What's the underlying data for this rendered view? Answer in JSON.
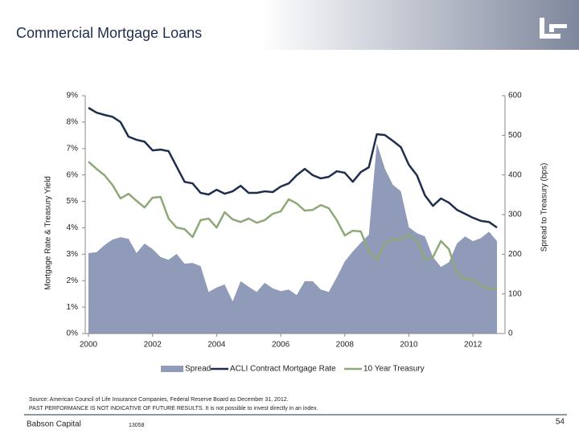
{
  "chart_data": {
    "type": "line",
    "title": "Commercial Mortgage Loans",
    "y_label": "Mortgage Rate & Treasury Yield",
    "y2_label": "Spread to Treasury (bps)",
    "x": [
      2000,
      2000.25,
      2000.5,
      2000.75,
      2001,
      2001.25,
      2001.5,
      2001.75,
      2002,
      2002.25,
      2002.5,
      2002.75,
      2003,
      2003.25,
      2003.5,
      2003.75,
      2004,
      2004.25,
      2004.5,
      2004.75,
      2005,
      2005.25,
      2005.5,
      2005.75,
      2006,
      2006.25,
      2006.5,
      2006.75,
      2007,
      2007.25,
      2007.5,
      2007.75,
      2008,
      2008.25,
      2008.5,
      2008.75,
      2009,
      2009.25,
      2009.5,
      2009.75,
      2010,
      2010.25,
      2010.5,
      2010.75,
      2011,
      2011.25,
      2011.5,
      2011.75,
      2012,
      2012.25,
      2012.5,
      2012.75
    ],
    "xlim": [
      2000,
      2013
    ],
    "xticks": [
      2000,
      2002,
      2004,
      2006,
      2008,
      2010,
      2012
    ],
    "ylim": [
      0,
      9
    ],
    "yticks": [
      {
        "value": 0,
        "label": "0%"
      },
      {
        "value": 1,
        "label": "1%"
      },
      {
        "value": 2,
        "label": "2%"
      },
      {
        "value": 3,
        "label": "3%"
      },
      {
        "value": 4,
        "label": "4%"
      },
      {
        "value": 5,
        "label": "5%"
      },
      {
        "value": 6,
        "label": "6%"
      },
      {
        "value": 7,
        "label": "7%"
      },
      {
        "value": 8,
        "label": "8%"
      },
      {
        "value": 9,
        "label": "9%"
      }
    ],
    "y2lim": [
      0,
      600
    ],
    "y2ticks": [
      0,
      100,
      200,
      300,
      400,
      500,
      600
    ],
    "series": [
      {
        "name": "Spread",
        "kind": "area",
        "axis": "y2",
        "color": "#8f9bb8",
        "values": [
          203,
          205,
          223,
          237,
          243,
          239,
          203,
          227,
          213,
          193,
          186,
          201,
          176,
          178,
          170,
          105,
          116,
          124,
          81,
          132,
          118,
          105,
          128,
          114,
          107,
          111,
          97,
          132,
          132,
          111,
          105,
          142,
          182,
          207,
          229,
          249,
          480,
          416,
          375,
          359,
          268,
          253,
          245,
          193,
          168,
          180,
          227,
          245,
          233,
          241,
          257,
          233
        ]
      },
      {
        "name": "ACLI Contract Mortgage Rate",
        "kind": "line",
        "color": "#1f2d4f",
        "values": [
          8.54,
          8.36,
          8.27,
          8.2,
          8.0,
          7.45,
          7.33,
          7.26,
          6.93,
          6.96,
          6.9,
          6.32,
          5.74,
          5.68,
          5.32,
          5.26,
          5.44,
          5.29,
          5.38,
          5.59,
          5.32,
          5.32,
          5.38,
          5.35,
          5.56,
          5.68,
          5.99,
          6.23,
          5.99,
          5.87,
          5.93,
          6.14,
          6.08,
          5.74,
          6.11,
          6.29,
          7.54,
          7.51,
          7.29,
          7.05,
          6.38,
          5.99,
          5.23,
          4.83,
          5.11,
          4.95,
          4.68,
          4.53,
          4.38,
          4.26,
          4.22,
          4.01
        ]
      },
      {
        "name": "10 Year Treasury",
        "kind": "line",
        "color": "#8fa878",
        "values": [
          6.5,
          6.23,
          5.99,
          5.62,
          5.11,
          5.29,
          5.02,
          4.77,
          5.14,
          5.17,
          4.35,
          4.01,
          3.95,
          3.65,
          4.29,
          4.35,
          4.01,
          4.59,
          4.32,
          4.22,
          4.35,
          4.19,
          4.29,
          4.53,
          4.62,
          5.08,
          4.92,
          4.65,
          4.68,
          4.86,
          4.74,
          4.29,
          3.71,
          3.89,
          3.86,
          3.1,
          2.8,
          3.4,
          3.56,
          3.56,
          3.74,
          3.5,
          2.83,
          2.89,
          3.5,
          3.19,
          2.28,
          2.07,
          2.04,
          1.82,
          1.7,
          1.7
        ]
      }
    ]
  },
  "footer": {
    "source": "Source: American Council of Life Insurance Companies, Federal Reserve Board as December 31, 2012.",
    "disclaimer": "PAST PERFORMANCE IS NOT INDICATIVE OF FUTURE RESULTS. It is not possible to invest directly in an index.",
    "company": "Babson Capital",
    "code": "13058",
    "page": "54"
  }
}
